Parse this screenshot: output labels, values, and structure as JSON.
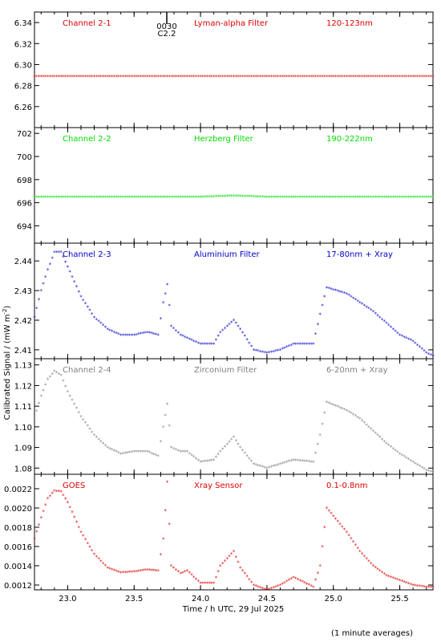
{
  "figure": {
    "ylabel": "Calibrated Signal / (mW m",
    "ylabel_sup": "-2",
    "ylabel_close": ")",
    "xlabel": "Time / h UTC, 29 Jul 2025",
    "footnote": "(1 minute averages)",
    "marker_text_1": "0030",
    "marker_text_2": "C2.2"
  },
  "chart_data": [
    {
      "type": "scatter",
      "channel": "Channel 2-1",
      "filter": "Lyman-alpha Filter",
      "band": "120-123nm",
      "color": "#dd0000",
      "xlim": [
        22.75,
        25.75
      ],
      "ylim": [
        6.24,
        6.35
      ],
      "xticks": [
        23.0,
        23.5,
        24.0,
        24.5,
        25.0,
        25.5
      ],
      "yticks": [
        6.26,
        6.28,
        6.3,
        6.32,
        6.34
      ],
      "ytick_labels": [
        "6.26",
        "6.28",
        "6.30",
        "6.32",
        "6.34"
      ],
      "show_xtick_labels": false,
      "points": [
        [
          22.75,
          6.289
        ],
        [
          23.0,
          6.289
        ],
        [
          23.25,
          6.289
        ],
        [
          23.5,
          6.289
        ],
        [
          23.75,
          6.289
        ],
        [
          24.0,
          6.289
        ],
        [
          24.25,
          6.289
        ],
        [
          24.5,
          6.289
        ],
        [
          24.75,
          6.289
        ],
        [
          25.0,
          6.289
        ],
        [
          25.25,
          6.289
        ],
        [
          25.5,
          6.289
        ],
        [
          25.75,
          6.289
        ]
      ]
    },
    {
      "type": "scatter",
      "channel": "Channel 2-2",
      "filter": "Herzberg Filter",
      "band": "190-222nm",
      "color": "#00dd00",
      "xlim": [
        22.75,
        25.75
      ],
      "ylim": [
        692.5,
        702.5
      ],
      "xticks": [
        23.0,
        23.5,
        24.0,
        24.5,
        25.0,
        25.5
      ],
      "yticks": [
        694,
        696,
        698,
        700,
        702
      ],
      "ytick_labels": [
        "694",
        "696",
        "698",
        "700",
        "702"
      ],
      "show_xtick_labels": false,
      "points": [
        [
          22.75,
          696.5
        ],
        [
          23.0,
          696.5
        ],
        [
          23.25,
          696.5
        ],
        [
          23.5,
          696.5
        ],
        [
          23.75,
          696.5
        ],
        [
          24.0,
          696.5
        ],
        [
          24.25,
          696.6
        ],
        [
          24.5,
          696.5
        ],
        [
          24.75,
          696.5
        ],
        [
          25.0,
          696.5
        ],
        [
          25.25,
          696.5
        ],
        [
          25.5,
          696.5
        ],
        [
          25.75,
          696.5
        ]
      ]
    },
    {
      "type": "scatter",
      "channel": "Channel 2-3",
      "filter": "Aluminium Filter",
      "band": "17-80nm + Xray",
      "color": "#0000cc",
      "xlim": [
        22.75,
        25.75
      ],
      "ylim": [
        2.407,
        2.446
      ],
      "xticks": [
        23.0,
        23.5,
        24.0,
        24.5,
        25.0,
        25.5
      ],
      "yticks": [
        2.41,
        2.42,
        2.43,
        2.44
      ],
      "ytick_labels": [
        "2.41",
        "2.42",
        "2.43",
        "2.44"
      ],
      "show_xtick_labels": false,
      "points": [
        [
          22.75,
          2.421
        ],
        [
          22.8,
          2.43
        ],
        [
          22.85,
          2.437
        ],
        [
          22.9,
          2.443
        ],
        [
          22.95,
          2.443
        ],
        [
          23.0,
          2.438
        ],
        [
          23.1,
          2.428
        ],
        [
          23.2,
          2.421
        ],
        [
          23.3,
          2.417
        ],
        [
          23.4,
          2.415
        ],
        [
          23.5,
          2.415
        ],
        [
          23.6,
          2.416
        ],
        [
          23.68,
          2.415
        ],
        [
          23.72,
          2.426
        ],
        [
          23.75,
          2.432
        ],
        [
          23.78,
          2.418
        ],
        [
          23.85,
          2.415
        ],
        [
          23.9,
          2.414
        ],
        [
          24.0,
          2.412
        ],
        [
          24.1,
          2.412
        ],
        [
          24.15,
          2.416
        ],
        [
          24.25,
          2.42
        ],
        [
          24.3,
          2.417
        ],
        [
          24.4,
          2.41
        ],
        [
          24.5,
          2.409
        ],
        [
          24.6,
          2.41
        ],
        [
          24.7,
          2.412
        ],
        [
          24.85,
          2.412
        ],
        [
          24.9,
          2.422
        ],
        [
          24.95,
          2.431
        ],
        [
          25.1,
          2.429
        ],
        [
          25.2,
          2.426
        ],
        [
          25.3,
          2.423
        ],
        [
          25.4,
          2.419
        ],
        [
          25.5,
          2.415
        ],
        [
          25.6,
          2.413
        ],
        [
          25.7,
          2.409
        ],
        [
          25.75,
          2.408
        ]
      ]
    },
    {
      "type": "scatter",
      "channel": "Channel 2-4",
      "filter": "Zirconium Filter",
      "band": "6-20nm + Xray",
      "color": "#808080",
      "xlim": [
        22.75,
        25.75
      ],
      "ylim": [
        1.077,
        1.133
      ],
      "xticks": [
        23.0,
        23.5,
        24.0,
        24.5,
        25.0,
        25.5
      ],
      "yticks": [
        1.08,
        1.09,
        1.1,
        1.11,
        1.12,
        1.13
      ],
      "ytick_labels": [
        "1.08",
        "1.09",
        "1.10",
        "1.11",
        "1.12",
        "1.13"
      ],
      "show_xtick_labels": false,
      "points": [
        [
          22.75,
          1.104
        ],
        [
          22.8,
          1.115
        ],
        [
          22.85,
          1.123
        ],
        [
          22.9,
          1.127
        ],
        [
          22.95,
          1.125
        ],
        [
          23.0,
          1.117
        ],
        [
          23.1,
          1.105
        ],
        [
          23.2,
          1.096
        ],
        [
          23.3,
          1.09
        ],
        [
          23.4,
          1.087
        ],
        [
          23.5,
          1.088
        ],
        [
          23.6,
          1.088
        ],
        [
          23.68,
          1.086
        ],
        [
          23.72,
          1.1
        ],
        [
          23.75,
          1.111
        ],
        [
          23.78,
          1.09
        ],
        [
          23.85,
          1.088
        ],
        [
          23.9,
          1.088
        ],
        [
          24.0,
          1.083
        ],
        [
          24.1,
          1.084
        ],
        [
          24.15,
          1.088
        ],
        [
          24.25,
          1.095
        ],
        [
          24.3,
          1.09
        ],
        [
          24.4,
          1.082
        ],
        [
          24.5,
          1.08
        ],
        [
          24.6,
          1.082
        ],
        [
          24.7,
          1.084
        ],
        [
          24.85,
          1.083
        ],
        [
          24.9,
          1.096
        ],
        [
          24.95,
          1.112
        ],
        [
          25.1,
          1.108
        ],
        [
          25.2,
          1.104
        ],
        [
          25.3,
          1.098
        ],
        [
          25.4,
          1.092
        ],
        [
          25.5,
          1.087
        ],
        [
          25.6,
          1.083
        ],
        [
          25.7,
          1.079
        ],
        [
          25.75,
          1.078
        ]
      ]
    },
    {
      "type": "scatter",
      "channel": "GOES",
      "filter": "Xray Sensor",
      "band": "0.1-0.8nm",
      "color": "#dd0000",
      "xlim": [
        22.75,
        25.75
      ],
      "ylim": [
        0.00115,
        0.00235
      ],
      "xticks": [
        23.0,
        23.5,
        24.0,
        24.5,
        25.0,
        25.5
      ],
      "yticks": [
        0.0012,
        0.0014,
        0.0016,
        0.0018,
        0.002,
        0.0022
      ],
      "ytick_labels": [
        "0.0012",
        "0.0014",
        "0.0016",
        "0.0018",
        "0.0020",
        "0.0022"
      ],
      "xtick_labels": [
        "23.0",
        "23.5",
        "24.0",
        "24.5",
        "25.0",
        "25.5"
      ],
      "show_xtick_labels": true,
      "points": [
        [
          22.75,
          0.00168
        ],
        [
          22.8,
          0.0019
        ],
        [
          22.85,
          0.0021
        ],
        [
          22.9,
          0.00218
        ],
        [
          22.95,
          0.00217
        ],
        [
          23.0,
          0.00206
        ],
        [
          23.1,
          0.00175
        ],
        [
          23.2,
          0.00152
        ],
        [
          23.3,
          0.00138
        ],
        [
          23.4,
          0.00133
        ],
        [
          23.5,
          0.00134
        ],
        [
          23.6,
          0.00136
        ],
        [
          23.68,
          0.00135
        ],
        [
          23.72,
          0.00168
        ],
        [
          23.75,
          0.00227
        ],
        [
          23.78,
          0.0014
        ],
        [
          23.85,
          0.00132
        ],
        [
          23.9,
          0.00135
        ],
        [
          24.0,
          0.00122
        ],
        [
          24.1,
          0.00122
        ],
        [
          24.15,
          0.0014
        ],
        [
          24.25,
          0.00155
        ],
        [
          24.3,
          0.00138
        ],
        [
          24.4,
          0.0012
        ],
        [
          24.5,
          0.00115
        ],
        [
          24.6,
          0.0012
        ],
        [
          24.7,
          0.00128
        ],
        [
          24.85,
          0.00118
        ],
        [
          24.9,
          0.0014
        ],
        [
          24.95,
          0.002
        ],
        [
          25.1,
          0.00175
        ],
        [
          25.2,
          0.00155
        ],
        [
          25.3,
          0.0014
        ],
        [
          25.4,
          0.0013
        ],
        [
          25.5,
          0.00125
        ],
        [
          25.6,
          0.0012
        ],
        [
          25.7,
          0.00118
        ],
        [
          25.75,
          0.00118
        ]
      ]
    }
  ]
}
